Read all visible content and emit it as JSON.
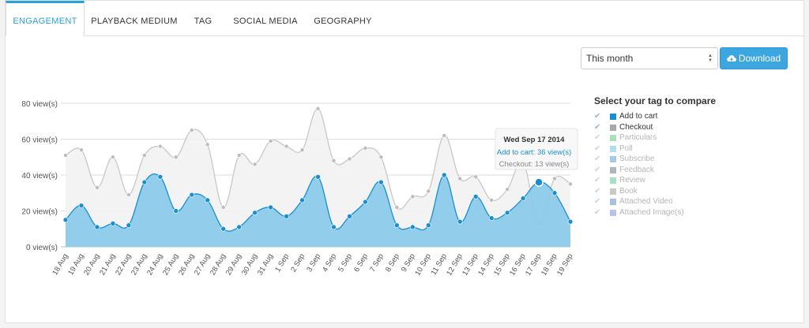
{
  "tabs": [
    {
      "label": "ENGAGEMENT",
      "active": true
    },
    {
      "label": "PLAYBACK MEDIUM",
      "active": false
    },
    {
      "label": "TAG",
      "active": false
    },
    {
      "label": "SOCIAL MEDIA",
      "active": false
    },
    {
      "label": "GEOGRAPHY",
      "active": false
    }
  ],
  "period_select": {
    "value": "This month"
  },
  "download_button": {
    "label": "Download"
  },
  "legend": {
    "title": "Select your tag to compare",
    "items": [
      {
        "label": "Add to cart",
        "color": "#1a8fcf",
        "active": true
      },
      {
        "label": "Checkout",
        "color": "#a8a8a8",
        "active": true
      },
      {
        "label": "Particulars",
        "color": "#a9e0b4",
        "active": false
      },
      {
        "label": "Poll",
        "color": "#b0e0f0",
        "active": false
      },
      {
        "label": "Subscribe",
        "color": "#a8c8e8",
        "active": false
      },
      {
        "label": "Feedback",
        "color": "#b0b8bc",
        "active": false
      },
      {
        "label": "Review",
        "color": "#a6e0c8",
        "active": false
      },
      {
        "label": "Book",
        "color": "#c8c8c8",
        "active": false
      },
      {
        "label": "Attached Video",
        "color": "#a8c0d8",
        "active": false
      },
      {
        "label": "Attached Image(s)",
        "color": "#b8c0ec",
        "active": false
      }
    ]
  },
  "tooltip": {
    "date": "Wed Sep 17 2014",
    "line1": "Add to cart: 36 view(s)",
    "line2": "Checkout: 13 view(s)"
  },
  "chart_data": {
    "type": "area",
    "x": [
      "18 Aug",
      "19 Aug",
      "20 Aug",
      "21 Aug",
      "22 Aug",
      "23 Aug",
      "24 Aug",
      "25 Aug",
      "26 Aug",
      "27 Aug",
      "28 Aug",
      "29 Aug",
      "30 Aug",
      "31 Aug",
      "1 Sep",
      "2 Sep",
      "3 Sep",
      "4 Sep",
      "5 Sep",
      "6 Sep",
      "7 Sep",
      "8 Sep",
      "9 Sep",
      "10 Sep",
      "11 Sep",
      "12 Sep",
      "13 Sep",
      "14 Sep",
      "15 Sep",
      "16 Sep",
      "17 Sep",
      "18 Sep",
      "19 Sep"
    ],
    "y_ticks": [
      "0 view(s)",
      "20 view(s)",
      "40 view(s)",
      "60 view(s)",
      "80 view(s)"
    ],
    "ylim": [
      0,
      80
    ],
    "grid": true,
    "series": [
      {
        "name": "Checkout",
        "color": "#c0c0c0",
        "values": [
          51,
          54,
          33,
          50,
          29,
          51,
          56,
          50,
          65,
          57,
          22,
          51,
          46,
          59,
          56,
          54,
          77,
          48,
          49,
          55,
          50,
          22,
          28,
          31,
          62,
          38,
          39,
          26,
          32,
          47,
          13,
          38,
          35
        ]
      },
      {
        "name": "Add to cart",
        "color": "#1a8fcf",
        "values": [
          15,
          23,
          11,
          13,
          12,
          36,
          39,
          20,
          29,
          26,
          10,
          11,
          19,
          22,
          17,
          26,
          39,
          11,
          17,
          25,
          36,
          12,
          11,
          12,
          40,
          14,
          28,
          16,
          19,
          27,
          36,
          30,
          14
        ]
      }
    ],
    "highlight_index": 30
  }
}
